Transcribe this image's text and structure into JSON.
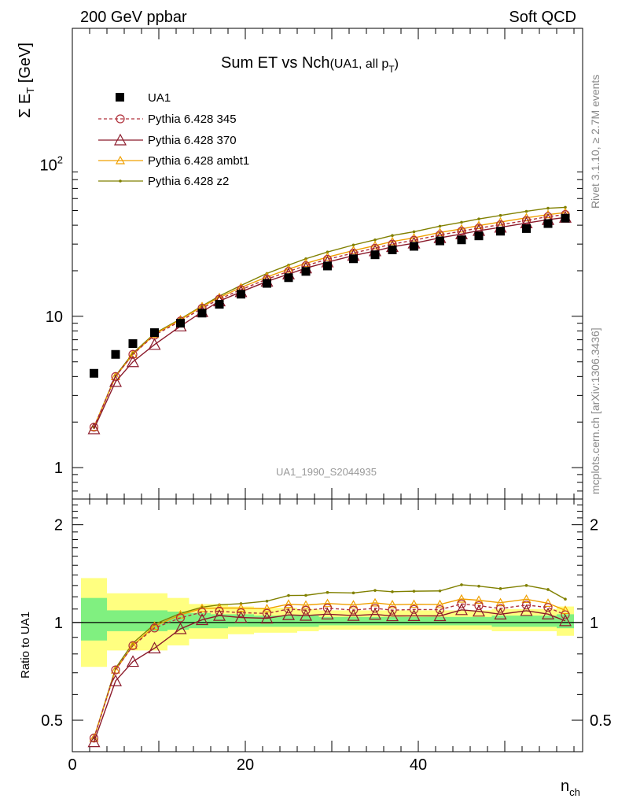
{
  "header": {
    "left": "200 GeV ppbar",
    "right": "Soft QCD"
  },
  "title": {
    "main": "Sum ET vs Nch",
    "sub": "(UA1, all p",
    "sub_subscript": "T",
    "sub_close": ")"
  },
  "side_text": {
    "rivet": "Rivet 3.1.10, ≥ 2.7M events",
    "mcplots": "mcplots.cern.ch [arXiv:1306.3436]"
  },
  "analysis_label": "UA1_1990_S2044935",
  "ylabel_top": {
    "prefix": "Σ E",
    "sub": "T",
    "suffix": " [GeV]"
  },
  "ylabel_ratio": "Ratio to UA1",
  "xlabel": {
    "main": "n",
    "sub": "ch"
  },
  "legend": [
    {
      "label": "UA1"
    },
    {
      "label": "Pythia 6.428 345"
    },
    {
      "label": "Pythia 6.428 370"
    },
    {
      "label": "Pythia 6.428 ambt1"
    },
    {
      "label": "Pythia 6.428 z2"
    }
  ],
  "colors": {
    "data": "#000000",
    "p345": "#b0303a",
    "p370": "#8b1a2b",
    "ambt1": "#f0a000",
    "z2": "#808000",
    "band_inner": "#80f080",
    "band_outer": "#ffff80"
  },
  "chart_data": {
    "type": "line",
    "x": [
      2.5,
      5,
      7,
      9.5,
      12.5,
      15,
      17,
      19.5,
      22.5,
      25,
      27,
      29.5,
      32.5,
      35,
      37,
      39.5,
      42.5,
      45,
      47,
      49.5,
      52.5,
      55,
      57
    ],
    "x_ticks": [
      0,
      20,
      40
    ],
    "xlim": [
      0,
      59
    ],
    "y_log": true,
    "ylim": [
      0.62,
      800
    ],
    "y_tick_labels": [
      "1",
      "10",
      "10^2"
    ],
    "ratio_ylim": [
      0.4,
      2.4
    ],
    "ratio_ticks": [
      0.5,
      1,
      2
    ],
    "series": [
      {
        "name": "UA1",
        "style": "data",
        "values": [
          4.2,
          5.6,
          6.6,
          7.8,
          9,
          10.5,
          12,
          14,
          16.5,
          18,
          19.8,
          21.5,
          24,
          25.5,
          27.5,
          29,
          31.5,
          32,
          34,
          36.5,
          38,
          41,
          44.5
        ]
      },
      {
        "name": "Pythia 6.428 345",
        "style": "p345",
        "values": [
          1.85,
          4.0,
          5.6,
          7.5,
          9.3,
          11.3,
          13.0,
          15.0,
          17.6,
          19.8,
          21.6,
          23.8,
          26.2,
          28.2,
          30.0,
          31.8,
          34.5,
          36.5,
          38.3,
          40.3,
          43.0,
          45.6,
          47.0
        ]
      },
      {
        "name": "Pythia 6.428 370",
        "style": "p370",
        "values": [
          1.8,
          3.7,
          5.0,
          6.5,
          8.6,
          10.7,
          12.6,
          14.5,
          17.0,
          19.0,
          20.8,
          22.8,
          25.2,
          27.0,
          28.8,
          30.4,
          33.0,
          35.0,
          36.8,
          38.7,
          41.3,
          43.5,
          45.0
        ]
      },
      {
        "name": "Pythia 6.428 ambt1",
        "style": "ambt1",
        "values": [
          1.85,
          4.0,
          5.6,
          7.6,
          9.5,
          11.6,
          13.3,
          15.5,
          18.2,
          20.5,
          22.4,
          24.6,
          27.2,
          29.3,
          31.2,
          33.0,
          35.8,
          37.8,
          39.8,
          42.0,
          44.8,
          47.0,
          48.5
        ]
      },
      {
        "name": "Pythia 6.428 z2",
        "style": "z2",
        "values": [
          1.85,
          4.05,
          5.7,
          7.7,
          9.6,
          11.7,
          13.6,
          16.0,
          19.2,
          21.8,
          24.0,
          26.6,
          29.6,
          32.0,
          34.2,
          36.2,
          39.4,
          41.8,
          44.0,
          46.4,
          49.4,
          51.8,
          52.5
        ]
      }
    ],
    "ratio_band": {
      "edges": [
        1,
        4,
        6,
        8.5,
        11,
        13.5,
        16,
        18,
        21,
        23.5,
        26,
        28.5,
        31,
        33.5,
        36,
        38.5,
        41,
        43.5,
        46,
        48.5,
        51,
        53.5,
        56,
        58
      ],
      "inner": [
        [
          0.88,
          1.19
        ],
        [
          0.94,
          1.09
        ],
        [
          0.94,
          1.09
        ],
        [
          0.94,
          1.09
        ],
        [
          0.95,
          1.08
        ],
        [
          0.96,
          1.07
        ],
        [
          0.96,
          1.06
        ],
        [
          0.97,
          1.06
        ],
        [
          0.97,
          1.05
        ],
        [
          0.97,
          1.05
        ],
        [
          0.97,
          1.05
        ],
        [
          0.98,
          1.04
        ],
        [
          0.98,
          1.04
        ],
        [
          0.98,
          1.04
        ],
        [
          0.98,
          1.04
        ],
        [
          0.98,
          1.04
        ],
        [
          0.98,
          1.04
        ],
        [
          0.98,
          1.04
        ],
        [
          0.98,
          1.04
        ],
        [
          0.97,
          1.05
        ],
        [
          0.97,
          1.05
        ],
        [
          0.97,
          1.05
        ],
        [
          0.96,
          1.06
        ]
      ],
      "outer": [
        [
          0.73,
          1.37
        ],
        [
          0.82,
          1.23
        ],
        [
          0.82,
          1.23
        ],
        [
          0.82,
          1.23
        ],
        [
          0.85,
          1.19
        ],
        [
          0.89,
          1.14
        ],
        [
          0.89,
          1.14
        ],
        [
          0.92,
          1.12
        ],
        [
          0.93,
          1.11
        ],
        [
          0.93,
          1.11
        ],
        [
          0.94,
          1.1
        ],
        [
          0.95,
          1.09
        ],
        [
          0.95,
          1.09
        ],
        [
          0.95,
          1.09
        ],
        [
          0.95,
          1.09
        ],
        [
          0.95,
          1.09
        ],
        [
          0.95,
          1.09
        ],
        [
          0.95,
          1.09
        ],
        [
          0.95,
          1.09
        ],
        [
          0.94,
          1.1
        ],
        [
          0.94,
          1.1
        ],
        [
          0.94,
          1.1
        ],
        [
          0.91,
          1.12
        ]
      ]
    }
  }
}
